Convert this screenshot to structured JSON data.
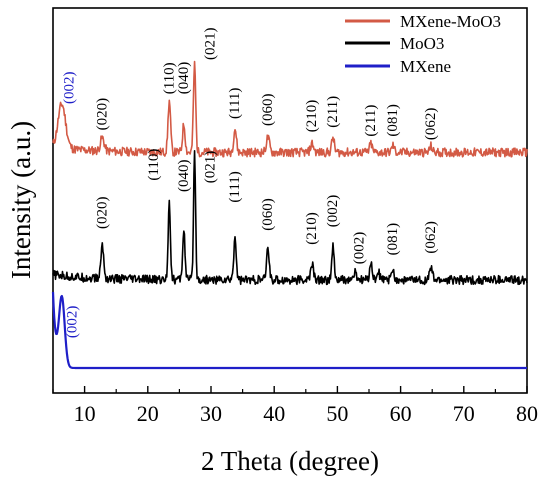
{
  "chart_data": {
    "type": "line",
    "xlabel": "2 Theta (degree)",
    "ylabel": "Intensity (a.u.)",
    "xlim": [
      5,
      80
    ],
    "x_ticks": [
      10,
      20,
      30,
      40,
      50,
      60,
      70,
      80
    ],
    "y_ticks_shown": false,
    "grid": false,
    "legend_position": "top-right",
    "series": [
      {
        "name": "MXene-MoO3",
        "color": "#d35a45",
        "baseline_offset": 2.45,
        "baseline_noise": 0.05,
        "peaks": [
          {
            "x": 6.4,
            "height": 0.5,
            "width": 0.6
          },
          {
            "x": 12.8,
            "height": 0.15,
            "width": 0.3
          },
          {
            "x": 23.4,
            "height": 0.58,
            "width": 0.2
          },
          {
            "x": 25.7,
            "height": 0.32,
            "width": 0.2
          },
          {
            "x": 27.4,
            "height": 1.0,
            "width": 0.18
          },
          {
            "x": 33.8,
            "height": 0.27,
            "width": 0.22
          },
          {
            "x": 39.0,
            "height": 0.17,
            "width": 0.25
          },
          {
            "x": 46.0,
            "height": 0.1,
            "width": 0.25
          },
          {
            "x": 49.3,
            "height": 0.17,
            "width": 0.2
          },
          {
            "x": 55.3,
            "height": 0.1,
            "width": 0.2
          },
          {
            "x": 58.8,
            "height": 0.08,
            "width": 0.2
          },
          {
            "x": 64.8,
            "height": 0.07,
            "width": 0.2
          }
        ],
        "labels": [
          {
            "text": "(002)",
            "x": 7.6,
            "y_offset": 0.55,
            "color": "#1f1fc8"
          },
          {
            "text": "(020)",
            "x": 12.8,
            "y_offset": 0.25,
            "color": "#000000"
          },
          {
            "text": "(110)",
            "x": 23.4,
            "y_offset": 0.66,
            "color": "#000000"
          },
          {
            "text": "(040)",
            "x": 25.7,
            "y_offset": 0.66,
            "color": "#000000"
          },
          {
            "text": "(021)",
            "x": 29.9,
            "y_offset": 1.05,
            "color": "#000000"
          },
          {
            "text": "(111)",
            "x": 33.8,
            "y_offset": 0.38,
            "color": "#000000"
          },
          {
            "text": "(060)",
            "x": 39.0,
            "y_offset": 0.3,
            "color": "#000000"
          },
          {
            "text": "(210)",
            "x": 46.0,
            "y_offset": 0.23,
            "color": "#000000"
          },
          {
            "text": "(211)",
            "x": 49.3,
            "y_offset": 0.28,
            "color": "#000000"
          },
          {
            "text": "(211)",
            "x": 55.3,
            "y_offset": 0.18,
            "color": "#000000"
          },
          {
            "text": "(081)",
            "x": 58.8,
            "y_offset": 0.18,
            "color": "#000000"
          },
          {
            "text": "(062)",
            "x": 64.8,
            "y_offset": 0.14,
            "color": "#000000"
          }
        ]
      },
      {
        "name": "MoO3",
        "color": "#000000",
        "baseline_offset": 1.0,
        "baseline_noise": 0.05,
        "peaks": [
          {
            "x": 12.8,
            "height": 0.38,
            "width": 0.22
          },
          {
            "x": 23.4,
            "height": 0.88,
            "width": 0.18
          },
          {
            "x": 25.7,
            "height": 0.58,
            "width": 0.18
          },
          {
            "x": 27.4,
            "height": 1.45,
            "width": 0.16
          },
          {
            "x": 33.8,
            "height": 0.48,
            "width": 0.2
          },
          {
            "x": 39.0,
            "height": 0.35,
            "width": 0.22
          },
          {
            "x": 46.0,
            "height": 0.18,
            "width": 0.22
          },
          {
            "x": 49.3,
            "height": 0.38,
            "width": 0.18
          },
          {
            "x": 52.8,
            "height": 0.08,
            "width": 0.22
          },
          {
            "x": 55.3,
            "height": 0.22,
            "width": 0.18
          },
          {
            "x": 56.5,
            "height": 0.1,
            "width": 0.18
          },
          {
            "x": 58.8,
            "height": 0.12,
            "width": 0.2
          },
          {
            "x": 64.8,
            "height": 0.14,
            "width": 0.22
          }
        ],
        "labels": [
          {
            "text": "(020)",
            "x": 12.8,
            "y_offset": 0.58
          },
          {
            "text": "(110)",
            "x": 21.0,
            "y_offset": 1.13
          },
          {
            "text": "(040)",
            "x": 25.7,
            "y_offset": 1.0
          },
          {
            "text": "(021)",
            "x": 29.9,
            "y_offset": 1.1
          },
          {
            "text": "(111)",
            "x": 33.8,
            "y_offset": 0.88
          },
          {
            "text": "(060)",
            "x": 39.0,
            "y_offset": 0.56
          },
          {
            "text": "(210)",
            "x": 46.0,
            "y_offset": 0.4
          },
          {
            "text": "(002)",
            "x": 49.3,
            "y_offset": 0.6
          },
          {
            "text": "(002)",
            "x": 53.5,
            "y_offset": 0.18
          },
          {
            "text": "(081)",
            "x": 58.8,
            "y_offset": 0.28
          },
          {
            "text": "(062)",
            "x": 64.8,
            "y_offset": 0.3
          }
        ]
      },
      {
        "name": "MXene",
        "color": "#1f1fc8",
        "baseline_offset": 0.0,
        "baseline_noise": 0.0,
        "peaks": [
          {
            "x": 6.4,
            "height": 0.78,
            "width": 0.45
          }
        ],
        "labels": [
          {
            "text": "(002)",
            "x": 8.1,
            "y_offset": 0.34,
            "color": "#1f1fc8"
          }
        ]
      }
    ]
  }
}
